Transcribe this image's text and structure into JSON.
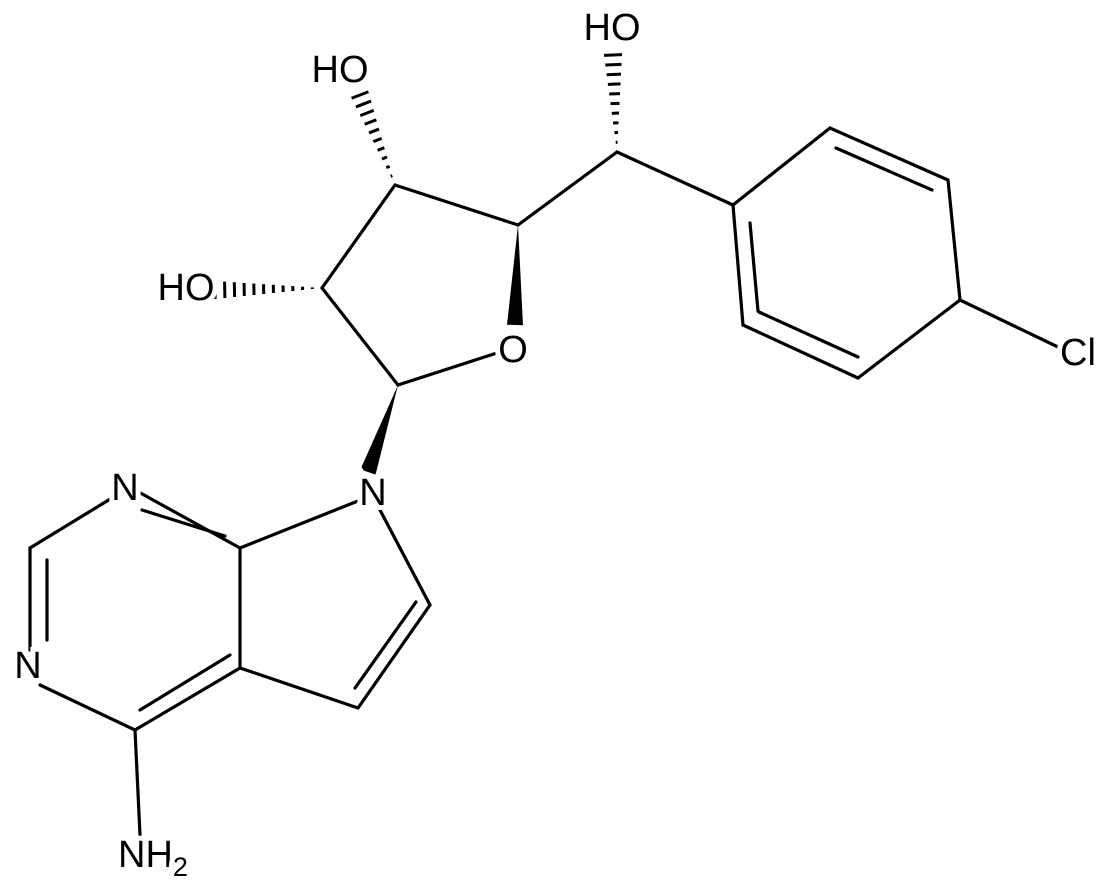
{
  "atoms": [
    {
      "label": "HO"
    },
    {
      "label": "HO"
    },
    {
      "label": "HO"
    },
    {
      "label": "O"
    },
    {
      "label": "Cl"
    },
    {
      "label": "N"
    },
    {
      "label": "N"
    },
    {
      "label": "N"
    },
    {
      "label": "NH",
      "subscript": "2"
    }
  ]
}
